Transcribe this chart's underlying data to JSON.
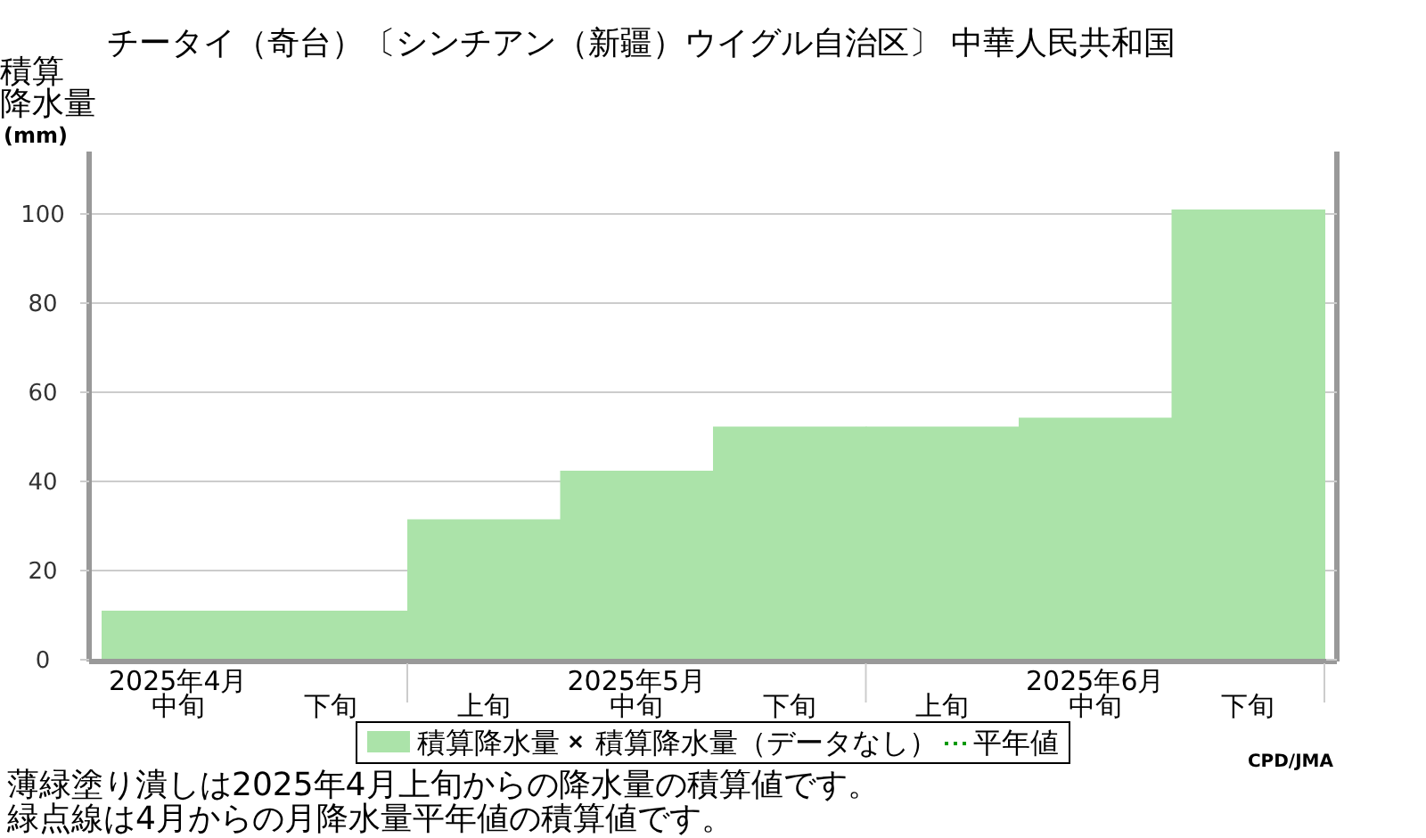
{
  "chart_data": {
    "type": "bar",
    "title": "チータイ（奇台）〔シンチアン（新疆）ウイグル自治区〕 中華人民共和国",
    "ylabel": "積算降水量(mm)",
    "categories": [
      "2025年4月中旬",
      "下旬",
      "上旬",
      "2025年5月中旬",
      "下旬",
      "上旬",
      "2025年6月中旬",
      "下旬"
    ],
    "series": [
      {
        "name": "積算降水量",
        "color": "#abe3a9",
        "values": [
          11,
          11,
          31.5,
          42.4,
          52.3,
          52.3,
          54.3,
          101
        ]
      },
      {
        "name": "積算降水量（データなし）",
        "type": "scatter",
        "marker": "cross",
        "color": "#000000",
        "values": [
          null,
          null,
          null,
          null,
          null,
          null,
          null,
          null
        ]
      },
      {
        "name": "平年値",
        "type": "line",
        "line_style": "dotted",
        "color": "#009900",
        "values": [
          null,
          null,
          null,
          null,
          null,
          null,
          null,
          null
        ]
      }
    ],
    "ylim": [
      0,
      114
    ],
    "yticks": [
      0,
      20,
      40,
      60,
      80,
      100
    ],
    "grid": "y",
    "legend": "bottom",
    "annotations": [
      "CPD/JMA",
      "薄緑塗り潰しは2025年4月上旬からの降水量の積算値です。",
      "緑点線は4月からの月降水量平年値の積算値です。"
    ]
  }
}
